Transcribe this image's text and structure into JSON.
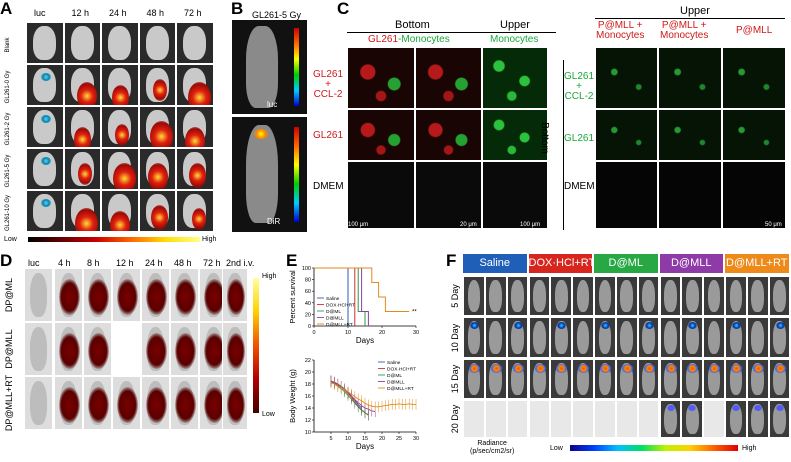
{
  "panelA": {
    "label": "A",
    "columns": [
      "luc",
      "12 h",
      "24 h",
      "48 h",
      "72 h"
    ],
    "rows": [
      "Blank",
      "GL261-0 Gy",
      "GL261-2 Gy",
      "GL261-5 Gy",
      "GL261-10 Gy"
    ],
    "scale_low": "Low",
    "scale_high": "High"
  },
  "panelB": {
    "label": "B",
    "title": "GL261-5 Gy",
    "top_label": "luc",
    "bottom_label": "DiR"
  },
  "panelC": {
    "label": "C",
    "bottom_header": "Bottom",
    "upper_header": "Upper",
    "gl261_part": "GL261",
    "monocytes_part": "-Monocytes",
    "monocytes": "Monocytes",
    "row_labels": [
      "GL261\n+\nCCL-2",
      "GL261",
      "DMEM"
    ],
    "scale_100": "100 μm",
    "scale_20": "20 μm",
    "scale_100b": "100 μm",
    "right_upper": "Upper",
    "right_cols": [
      "P@MLL +\nMonocytes",
      "P@MLL +\nMonocytes",
      "P@MLL"
    ],
    "right_rows": [
      "GL261\n+\nCCL-2",
      "GL261",
      "DMEM"
    ],
    "right_bottom": "Bottom",
    "scale_50": "50 μm"
  },
  "panelD": {
    "label": "D",
    "columns": [
      "luc",
      "4 h",
      "8 h",
      "12 h",
      "24 h",
      "48 h",
      "72 h",
      "2nd i.v."
    ],
    "rows": [
      "DP@ML",
      "DP@MLL",
      "DP@MLL+RT"
    ],
    "scale_high": "High",
    "scale_low": "Low"
  },
  "panelE": {
    "label": "E",
    "survival": {
      "type": "line",
      "ylabel": "Percent survival",
      "xlabel": "Days",
      "xlim": [
        0,
        30
      ],
      "ylim": [
        0,
        100
      ],
      "xticks": [
        0,
        10,
        20,
        30
      ],
      "yticks": [
        0,
        20,
        40,
        60,
        80,
        100
      ],
      "significance": "**",
      "series": [
        {
          "name": "Saline",
          "color": "#2f5fb0",
          "points": [
            [
              0,
              100
            ],
            [
              10,
              100
            ],
            [
              10,
              0
            ]
          ]
        },
        {
          "name": "DOX·HCl+RT",
          "color": "#d03030",
          "points": [
            [
              0,
              100
            ],
            [
              12,
              100
            ],
            [
              12,
              0
            ]
          ]
        },
        {
          "name": "D@ML",
          "color": "#2e9a45",
          "points": [
            [
              0,
              100
            ],
            [
              13,
              100
            ],
            [
              13,
              25
            ],
            [
              15,
              25
            ],
            [
              15,
              0
            ]
          ]
        },
        {
          "name": "D@MLL",
          "color": "#8a3fa6",
          "points": [
            [
              0,
              100
            ],
            [
              14,
              100
            ],
            [
              14,
              25
            ],
            [
              16,
              25
            ],
            [
              16,
              0
            ]
          ]
        },
        {
          "name": "D@MLL+RT",
          "color": "#e38a1e",
          "points": [
            [
              0,
              100
            ],
            [
              17,
              100
            ],
            [
              17,
              75
            ],
            [
              19,
              75
            ],
            [
              19,
              50
            ],
            [
              21,
              50
            ],
            [
              21,
              25
            ],
            [
              28,
              25
            ]
          ]
        }
      ]
    },
    "weight": {
      "type": "line",
      "ylabel": "Body Weight (g)",
      "xlabel": "Days",
      "xlim": [
        0,
        30
      ],
      "ylim": [
        10,
        22
      ],
      "xticks": [
        5,
        10,
        15,
        20,
        25,
        30
      ],
      "yticks": [
        10,
        12,
        14,
        16,
        18,
        20,
        22
      ],
      "series": [
        {
          "name": "Saline",
          "color": "#2f5fb0",
          "x": [
            5,
            6,
            7,
            8,
            9,
            10,
            11,
            12,
            13,
            14
          ],
          "y": [
            18.5,
            18.3,
            18.0,
            17.6,
            17.2,
            16.6,
            16.0,
            15.3,
            14.6,
            14.0
          ]
        },
        {
          "name": "DOX·HCl+RT",
          "color": "#d03030",
          "x": [
            5,
            6,
            7,
            8,
            9,
            10,
            11,
            12,
            13,
            14,
            15,
            16
          ],
          "y": [
            18.5,
            18.2,
            17.9,
            17.5,
            17.0,
            16.4,
            15.8,
            15.0,
            14.3,
            13.7,
            13.2,
            12.8
          ]
        },
        {
          "name": "D@ML",
          "color": "#2e9a45",
          "x": [
            5,
            6,
            7,
            8,
            9,
            10,
            11,
            12,
            13,
            14,
            15,
            16
          ],
          "y": [
            18.4,
            18.0,
            17.6,
            17.2,
            16.7,
            16.1,
            15.5,
            14.8,
            14.2,
            13.6,
            13.2,
            12.9
          ]
        },
        {
          "name": "D@MLL",
          "color": "#8a3fa6",
          "x": [
            5,
            6,
            7,
            8,
            9,
            10,
            11,
            12,
            13,
            14,
            15,
            16,
            17,
            18
          ],
          "y": [
            18.5,
            18.2,
            17.8,
            17.4,
            17.0,
            16.5,
            16.0,
            15.4,
            14.9,
            14.4,
            14.0,
            13.8,
            13.5,
            13.4
          ]
        },
        {
          "name": "D@MLL+RT",
          "color": "#e38a1e",
          "x": [
            5,
            6,
            7,
            8,
            9,
            10,
            11,
            12,
            13,
            14,
            15,
            16,
            17,
            18,
            19,
            20,
            21,
            22,
            23,
            24,
            25,
            26,
            27,
            28,
            29,
            30
          ],
          "y": [
            18.2,
            18.0,
            17.7,
            17.4,
            17.0,
            16.7,
            16.3,
            15.9,
            15.5,
            15.2,
            14.8,
            14.5,
            14.3,
            14.2,
            14.2,
            14.3,
            14.4,
            14.5,
            14.6,
            14.6,
            14.7,
            14.6,
            14.6,
            14.7,
            14.6,
            14.6
          ]
        }
      ]
    }
  },
  "panelF": {
    "label": "F",
    "groups": [
      {
        "name": "Saline",
        "color": "#1f5fb8"
      },
      {
        "name": "DOX·HCl+RT",
        "color": "#d7261e"
      },
      {
        "name": "D@ML",
        "color": "#27a844"
      },
      {
        "name": "D@MLL",
        "color": "#8e3ba8"
      },
      {
        "name": "D@MLL+RT",
        "color": "#ee8a1a"
      }
    ],
    "rows": [
      "5 Day",
      "10 Day",
      "15 Day",
      "20 Day"
    ],
    "radiance_label": "Radiance\n(p/sec/cm2/sr)",
    "scale_low": "Low",
    "scale_high": "High"
  }
}
